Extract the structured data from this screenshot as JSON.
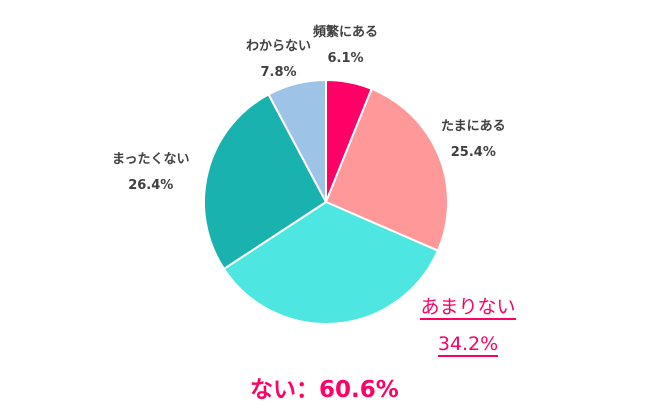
{
  "chart_data": {
    "type": "pie",
    "title": "",
    "start_angle": "12 o'clock",
    "direction": "clockwise",
    "categories": [
      "頻繁にある",
      "たまにある",
      "あまりない",
      "まったくない",
      "わからない"
    ],
    "values": [
      6.1,
      25.4,
      34.2,
      26.4,
      7.8
    ],
    "value_labels": [
      "6.1%",
      "25.4%",
      "34.2%",
      "26.4%",
      "7.8%"
    ],
    "colors": [
      "#FF0066",
      "#FF9999",
      "#4DE6E0",
      "#1AB2AF",
      "#9DC3E6"
    ],
    "highlighted": "あまりない",
    "annotation": "ない：60.6%"
  },
  "labels": {
    "hinpan": {
      "name": "頻繁にある",
      "value": "6.1%"
    },
    "tamani": {
      "name": "たまにある",
      "value": "25.4%"
    },
    "amari": {
      "name": "あまりない",
      "value": "34.2%"
    },
    "mattaku": {
      "name": "まったくない",
      "value": "26.4%"
    },
    "wakaranai": {
      "name": "わからない",
      "value": "7.8%"
    }
  },
  "summary": {
    "text": "ない：60.6%"
  },
  "colors": {
    "accent": "#FF0066",
    "label_text": "#404040"
  }
}
